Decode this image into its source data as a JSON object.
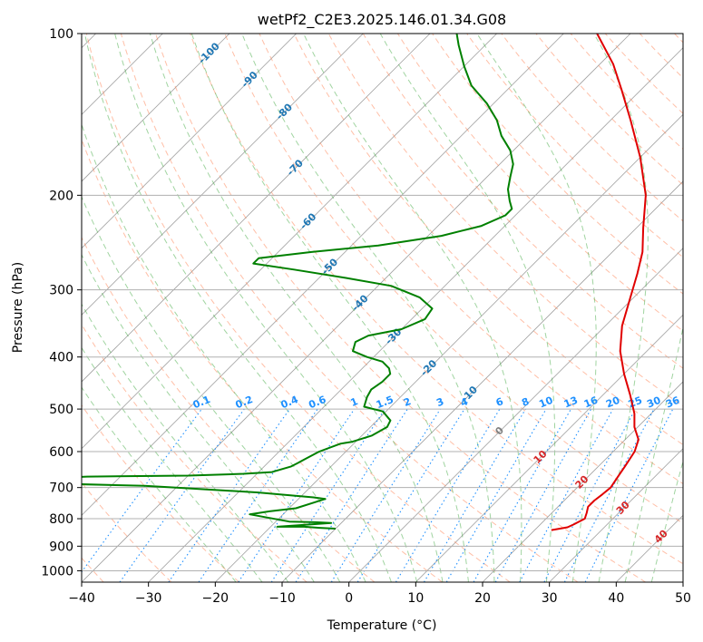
{
  "chart_data": {
    "type": "line",
    "title": "wetPf2_C2E3.2025.146.01.34.G08",
    "xlabel": "Temperature (°C)",
    "ylabel": "Pressure (hPa)",
    "xlim": [
      -40,
      50
    ],
    "ylim": [
      1050,
      100
    ],
    "y_scale": "log",
    "x_ticks": [
      -40,
      -30,
      -20,
      -10,
      0,
      10,
      20,
      30,
      40,
      50
    ],
    "y_ticks": [
      100,
      200,
      300,
      400,
      500,
      600,
      700,
      800,
      900,
      1000
    ],
    "grid": true,
    "colors": {
      "temperature": "#e00000",
      "dewpoint": "#008000",
      "isotherm": "#808080",
      "dry_adiabat": "#ff7f50",
      "moist_adiabat": "#2ca02c",
      "mixing_ratio": "#1e90ff",
      "isotherm_label": "#1f77b4",
      "warm_label": "#d62728"
    },
    "series": [
      {
        "color": "#e00000",
        "points": [
          [
            22.5,
            840
          ],
          [
            24.5,
            830
          ],
          [
            25.0,
            820
          ],
          [
            25.8,
            800
          ],
          [
            25.2,
            780
          ],
          [
            24.5,
            760
          ],
          [
            24.5,
            740
          ],
          [
            24.8,
            720
          ],
          [
            25.0,
            700
          ],
          [
            24.5,
            670
          ],
          [
            24.0,
            640
          ],
          [
            23.2,
            600
          ],
          [
            22.0,
            570
          ],
          [
            19.5,
            540
          ],
          [
            17.5,
            510
          ],
          [
            14.0,
            470
          ],
          [
            10.0,
            430
          ],
          [
            6.0,
            390
          ],
          [
            2.5,
            350
          ],
          [
            -0.5,
            310
          ],
          [
            -3.0,
            280
          ],
          [
            -5.5,
            255
          ],
          [
            -9.0,
            230
          ],
          [
            -13.5,
            200
          ],
          [
            -20.0,
            170
          ],
          [
            -27.0,
            145
          ],
          [
            -33.0,
            127
          ],
          [
            -38.0,
            114
          ],
          [
            -45.0,
            100
          ]
        ]
      },
      {
        "color": "#008000",
        "points": [
          [
            -10.0,
            835
          ],
          [
            -12.5,
            832
          ],
          [
            -15.0,
            828
          ],
          [
            -19.0,
            828
          ],
          [
            -14.5,
            820
          ],
          [
            -11.5,
            815
          ],
          [
            -14.0,
            812
          ],
          [
            -18.0,
            810
          ],
          [
            -25.0,
            785
          ],
          [
            -22.5,
            775
          ],
          [
            -19.0,
            765
          ],
          [
            -17.0,
            745
          ],
          [
            -16.0,
            735
          ],
          [
            -18.0,
            730
          ],
          [
            -27.0,
            715
          ],
          [
            -40.0,
            700
          ],
          [
            -45.0,
            695
          ],
          [
            -55.0,
            690
          ],
          [
            -70.0,
            680
          ],
          [
            -55.0,
            668
          ],
          [
            -40.0,
            665
          ],
          [
            -32.0,
            660
          ],
          [
            -28.0,
            655
          ],
          [
            -26.0,
            640
          ],
          [
            -25.5,
            630
          ],
          [
            -25.0,
            620
          ],
          [
            -24.0,
            600
          ],
          [
            -22.0,
            580
          ],
          [
            -20.5,
            575
          ],
          [
            -18.5,
            560
          ],
          [
            -17.5,
            540
          ],
          [
            -18.0,
            525
          ],
          [
            -20.5,
            505
          ],
          [
            -24.0,
            495
          ],
          [
            -25.0,
            475
          ],
          [
            -25.5,
            460
          ],
          [
            -25.0,
            445
          ],
          [
            -25.0,
            430
          ],
          [
            -26.0,
            420
          ],
          [
            -28.0,
            408
          ],
          [
            -31.0,
            400
          ],
          [
            -34.0,
            390
          ],
          [
            -35.0,
            375
          ],
          [
            -34.0,
            365
          ],
          [
            -30.0,
            355
          ],
          [
            -28.0,
            340
          ],
          [
            -28.5,
            325
          ],
          [
            -32.0,
            310
          ],
          [
            -38.0,
            295
          ],
          [
            -46.0,
            285
          ],
          [
            -55.0,
            275
          ],
          [
            -62.0,
            268
          ],
          [
            -62.0,
            262
          ],
          [
            -55.0,
            255
          ],
          [
            -46.0,
            248
          ],
          [
            -38.0,
            238
          ],
          [
            -33.5,
            228
          ],
          [
            -31.5,
            218
          ],
          [
            -31.5,
            212
          ],
          [
            -33.0,
            205
          ],
          [
            -35.0,
            195
          ],
          [
            -36.5,
            185
          ],
          [
            -38.0,
            175
          ],
          [
            -40.5,
            165
          ],
          [
            -44.0,
            155
          ],
          [
            -47.0,
            145
          ],
          [
            -51.0,
            135
          ],
          [
            -56.0,
            125
          ],
          [
            -60.0,
            115
          ],
          [
            -64.0,
            105
          ],
          [
            -66.0,
            100
          ]
        ]
      }
    ],
    "isotherm_labels": [
      {
        "t": -100,
        "p": 109,
        "text": "-100"
      },
      {
        "t": -90,
        "p": 122,
        "text": "-90"
      },
      {
        "t": -80,
        "p": 140,
        "text": "-80"
      },
      {
        "t": -70,
        "p": 178,
        "text": "-70"
      },
      {
        "t": -60,
        "p": 224,
        "text": "-60"
      },
      {
        "t": -50,
        "p": 272,
        "text": "-50"
      },
      {
        "t": -40,
        "p": 318,
        "text": "-40"
      },
      {
        "t": -30,
        "p": 367,
        "text": "-30"
      },
      {
        "t": -20,
        "p": 420,
        "text": "-20"
      },
      {
        "t": -10,
        "p": 470,
        "text": "-10"
      }
    ],
    "warm_labels": [
      {
        "t": 0,
        "p": 550,
        "text": "0",
        "color": "#808080"
      },
      {
        "t": 10,
        "p": 615,
        "text": "10",
        "color": "#d62728"
      },
      {
        "t": 20,
        "p": 685,
        "text": "20",
        "color": "#d62728"
      },
      {
        "t": 30,
        "p": 765,
        "text": "30",
        "color": "#d62728"
      },
      {
        "t": 40,
        "p": 865,
        "text": "40",
        "color": "#d62728"
      }
    ],
    "mixing_ratio_lines": [
      0.1,
      0.2,
      0.4,
      0.6,
      1,
      1.5,
      2,
      3,
      4,
      6,
      8,
      10,
      13,
      16,
      20,
      25,
      30,
      36
    ],
    "mixing_ratio_labels": [
      "0.1",
      "0.2",
      "0.4",
      "0.6",
      "1",
      "1.5",
      "2",
      "3",
      "4",
      "6",
      "8",
      "10",
      "13",
      "16",
      "20",
      "25",
      "30",
      "36"
    ]
  }
}
